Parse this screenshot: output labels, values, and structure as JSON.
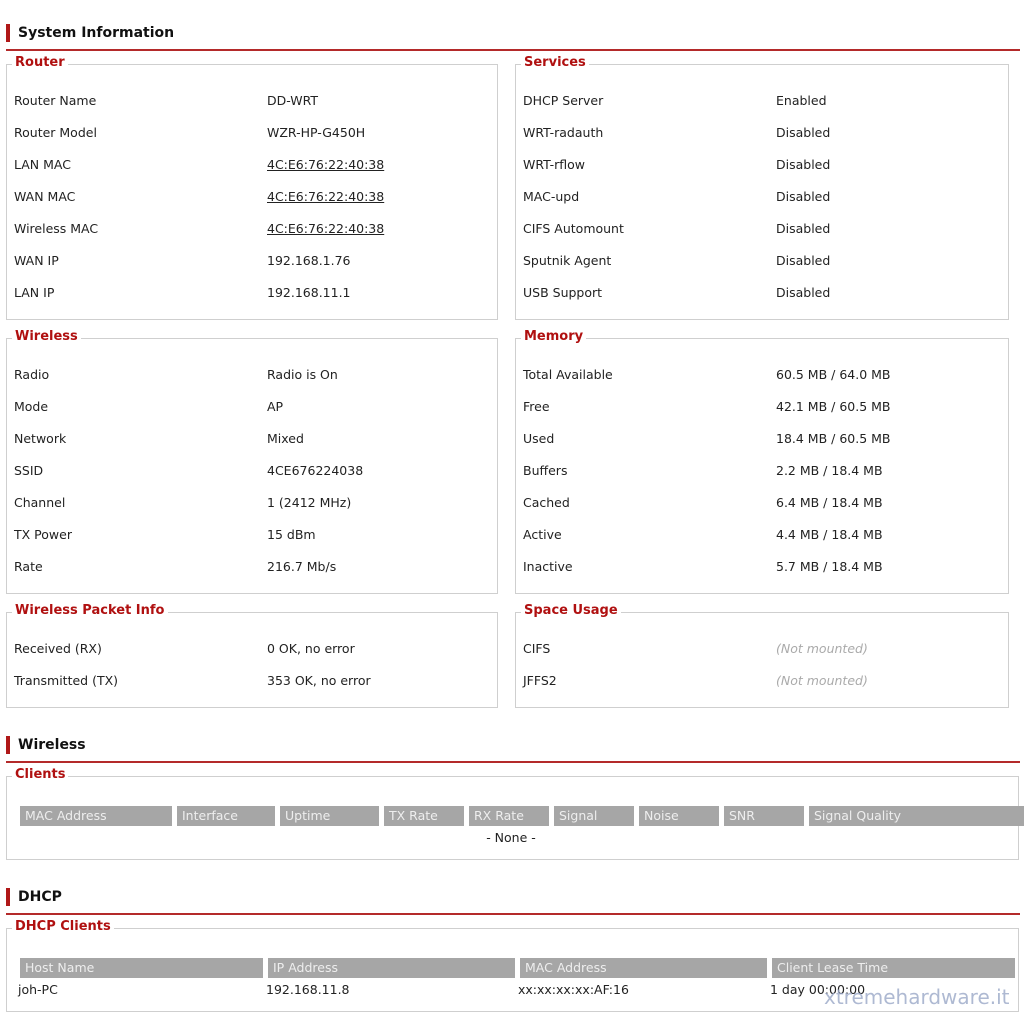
{
  "sections": [
    {
      "title": "System Information",
      "panels": [
        {
          "legend": "Router",
          "rows": [
            {
              "label": "Router Name",
              "value": "DD-WRT"
            },
            {
              "label": "Router Model",
              "value": "WZR-HP-G450H"
            },
            {
              "label": "LAN MAC",
              "value": "4C:E6:76:22:40:38",
              "link": true
            },
            {
              "label": "WAN MAC",
              "value": "4C:E6:76:22:40:38",
              "link": true
            },
            {
              "label": "Wireless MAC",
              "value": "4C:E6:76:22:40:38",
              "link": true
            },
            {
              "label": "WAN IP",
              "value": "192.168.1.76"
            },
            {
              "label": "LAN IP",
              "value": "192.168.11.1"
            }
          ]
        },
        {
          "legend": "Services",
          "rows": [
            {
              "label": "DHCP Server",
              "value": "Enabled"
            },
            {
              "label": "WRT-radauth",
              "value": "Disabled"
            },
            {
              "label": "WRT-rflow",
              "value": "Disabled"
            },
            {
              "label": "MAC-upd",
              "value": "Disabled"
            },
            {
              "label": "CIFS Automount",
              "value": "Disabled"
            },
            {
              "label": "Sputnik Agent",
              "value": "Disabled"
            },
            {
              "label": "USB Support",
              "value": "Disabled"
            }
          ]
        },
        {
          "legend": "Wireless",
          "rows": [
            {
              "label": "Radio",
              "value": "Radio is On"
            },
            {
              "label": "Mode",
              "value": "AP"
            },
            {
              "label": "Network",
              "value": "Mixed"
            },
            {
              "label": "SSID",
              "value": "4CE676224038"
            },
            {
              "label": "Channel",
              "value": "1 (2412 MHz)"
            },
            {
              "label": "TX Power",
              "value": "15 dBm"
            },
            {
              "label": "Rate",
              "value": "216.7 Mb/s"
            }
          ]
        },
        {
          "legend": "Memory",
          "rows": [
            {
              "label": "Total Available",
              "value": "60.5 MB / 64.0 MB"
            },
            {
              "label": "Free",
              "value": "42.1 MB / 60.5 MB"
            },
            {
              "label": "Used",
              "value": "18.4 MB / 60.5 MB"
            },
            {
              "label": "Buffers",
              "value": "2.2 MB / 18.4 MB"
            },
            {
              "label": "Cached",
              "value": "6.4 MB / 18.4 MB"
            },
            {
              "label": "Active",
              "value": "4.4 MB / 18.4 MB"
            },
            {
              "label": "Inactive",
              "value": "5.7 MB / 18.4 MB"
            }
          ]
        },
        {
          "legend": "Wireless Packet Info",
          "rows": [
            {
              "label": "Received (RX)",
              "value": "0 OK, no error"
            },
            {
              "label": "Transmitted (TX)",
              "value": "353 OK, no error"
            }
          ]
        },
        {
          "legend": "Space Usage",
          "rows": [
            {
              "label": "CIFS",
              "value": "(Not mounted)",
              "muted": true
            },
            {
              "label": "JFFS2",
              "value": "(Not mounted)",
              "muted": true
            }
          ]
        }
      ]
    },
    {
      "title": "Wireless",
      "panels": [
        {
          "legend": "Clients",
          "table": {
            "columns": [
              "MAC Address",
              "Interface",
              "Uptime",
              "TX Rate",
              "RX Rate",
              "Signal",
              "Noise",
              "SNR",
              "Signal Quality"
            ],
            "rows": [],
            "empty": "- None -"
          }
        }
      ]
    },
    {
      "title": "DHCP",
      "panels": [
        {
          "legend": "DHCP Clients",
          "table": {
            "columns": [
              "Host Name",
              "IP Address",
              "MAC Address",
              "Client Lease Time"
            ],
            "rows": [
              [
                "joh-PC",
                "192.168.11.8",
                "xx:xx:xx:xx:AF:16",
                "1 day 00:00:00"
              ]
            ]
          }
        }
      ]
    }
  ],
  "watermark": "xtremehardware.it"
}
